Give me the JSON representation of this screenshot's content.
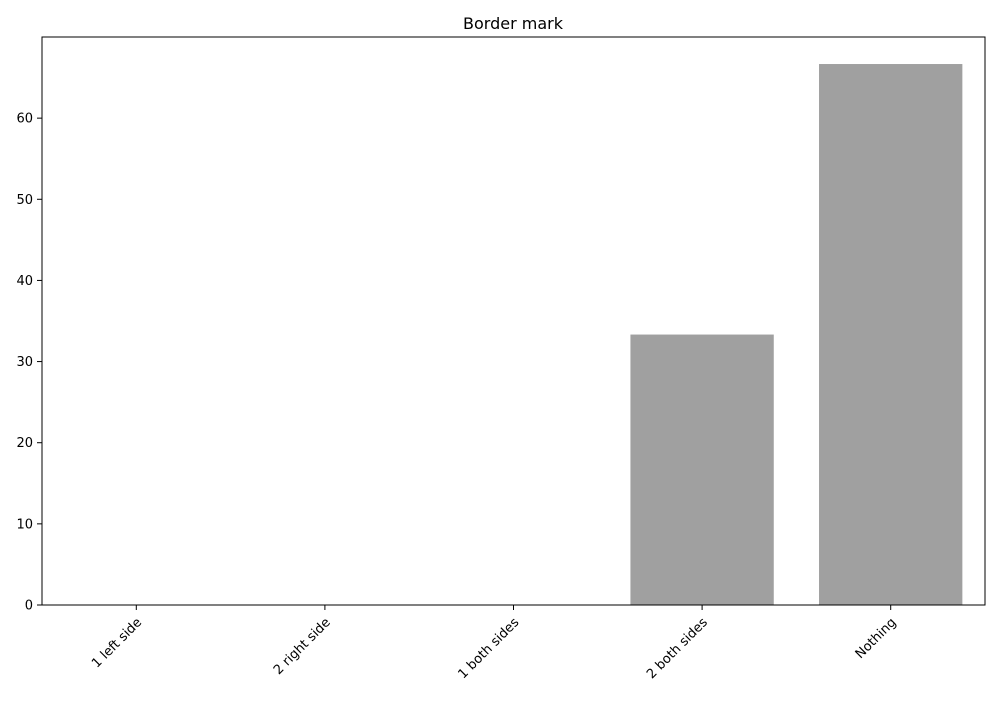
{
  "chart_data": {
    "type": "bar",
    "title": "Border mark",
    "xlabel": "",
    "ylabel": "",
    "categories": [
      "1 left side",
      "2 right side",
      "1 both sides",
      "2 both sides",
      "Nothing"
    ],
    "values": [
      0,
      0,
      0,
      33.33,
      66.67
    ],
    "ylim": [
      0,
      70
    ],
    "yticks": [
      0,
      10,
      20,
      30,
      40,
      50,
      60
    ],
    "grid": false,
    "bar_color": "#a0a0a0",
    "x_tick_rotation_deg": 45
  }
}
